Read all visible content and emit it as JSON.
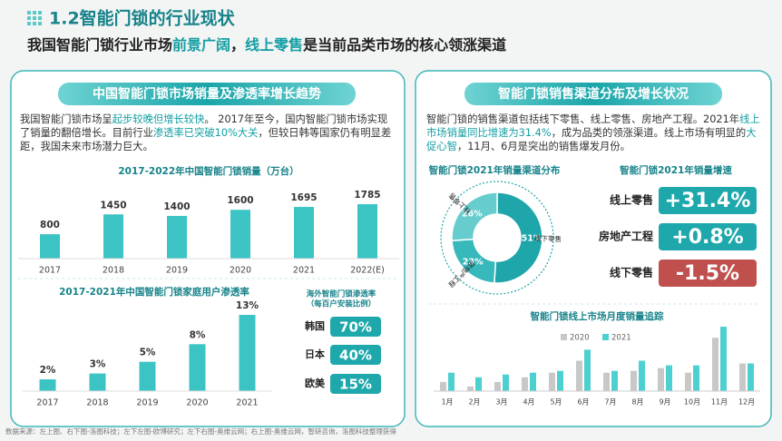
{
  "header": {
    "title": "1.2智能门锁的行业现状",
    "subtitle": [
      "我国智能门锁行业市场",
      "前景广阔",
      "，",
      "线上零售",
      "是当前品类市场的核心领涨渠道"
    ],
    "subtitle_highlights": [
      1,
      3
    ]
  },
  "left_panel": {
    "title": "中国智能门锁市场销量及渗透率增长趋势",
    "paragraph": [
      "我国智能门锁市场呈",
      "起步较晚但增长较快",
      "。 2017年至今，国内智能门锁市场实现了销量的翻倍增长。目前行业",
      "渗透率已突破10%大关",
      "，但较日韩等国家仍有明显差距，我国未来市场潜力巨大。"
    ],
    "highlights": [
      1,
      3
    ]
  },
  "right_panel": {
    "title": "智能门锁销售渠道分布及增长状况",
    "paragraph": [
      "智能门锁的销售渠道包括线下零售、线上零售、房地产工程。2021年",
      "线上市场销量同比增速为31.4%",
      "，成为品类的领涨渠道。线上市场有明显的",
      "大促心智",
      "，11月、6月是突出的销售爆发月份。"
    ],
    "highlights": [
      1,
      3
    ]
  },
  "chart_data": [
    {
      "type": "bar",
      "title": "2017-2022年中国智能门锁销量（万台）",
      "color": "#3cc3c3",
      "categories": [
        "2017",
        "2018",
        "2019",
        "2020",
        "2021",
        "2022(E)"
      ],
      "values": [
        800,
        1450,
        1400,
        1600,
        1695,
        1785
      ]
    },
    {
      "type": "bar",
      "title": "2017-2021年中国智能门锁家庭用户渗透率",
      "color": "#3cc3c3",
      "categories": [
        "2017",
        "2018",
        "2019",
        "2020",
        "2021"
      ],
      "values": [
        2,
        3,
        5,
        8,
        13
      ],
      "value_labels": [
        "2%",
        "3%",
        "5%",
        "8%",
        "13%"
      ]
    },
    {
      "type": "badge",
      "title": "海外智能门锁渗透率",
      "subtitle": "（每百户安装比例）",
      "color": "#1fa8ab",
      "categories": [
        "韩国",
        "日本",
        "欧美"
      ],
      "values": [
        70,
        40,
        15
      ],
      "value_labels": [
        "70%",
        "40%",
        "15%"
      ]
    },
    {
      "type": "pie",
      "title": "智能门锁2021年销量渠道分布",
      "categories": [
        "线下零售",
        "房地产工程",
        "线上零售"
      ],
      "values": [
        51,
        23,
        26
      ],
      "value_labels": [
        "51%",
        "23%",
        "26%"
      ],
      "colors": [
        "#1ea6aa",
        "#37b8bb",
        "#66cccd"
      ]
    },
    {
      "type": "badge",
      "title": "智能门锁2021年销量增速",
      "color": "#1fa8ab",
      "negative_color": "#c0504d",
      "categories": [
        "线上零售",
        "房地产工程",
        "线下零售"
      ],
      "values": [
        31.4,
        0.8,
        -1.5
      ],
      "value_labels": [
        "+31.4%",
        "+0.8%",
        "-1.5%"
      ]
    },
    {
      "type": "grouped-bar",
      "title": "智能门锁线上市场月度销量追踪",
      "categories": [
        "1月",
        "2月",
        "3月",
        "4月",
        "5月",
        "6月",
        "7月",
        "8月",
        "9月",
        "10月",
        "11月",
        "12月"
      ],
      "series": [
        {
          "name": "2020",
          "color": "#c8c8c8",
          "values": [
            10,
            5,
            10,
            15,
            20,
            33,
            20,
            22,
            25,
            20,
            58,
            30
          ]
        },
        {
          "name": "2021",
          "color": "#4fd0d0",
          "values": [
            20,
            15,
            18,
            20,
            22,
            45,
            22,
            33,
            28,
            28,
            70,
            30
          ]
        }
      ]
    }
  ],
  "footer": "数据来源：左上图、右下图-洛图科技；左下左图-欧博研究；左下右图-奥维云网；右上图-奥维云网，智研咨询，洛图科技整理获得"
}
